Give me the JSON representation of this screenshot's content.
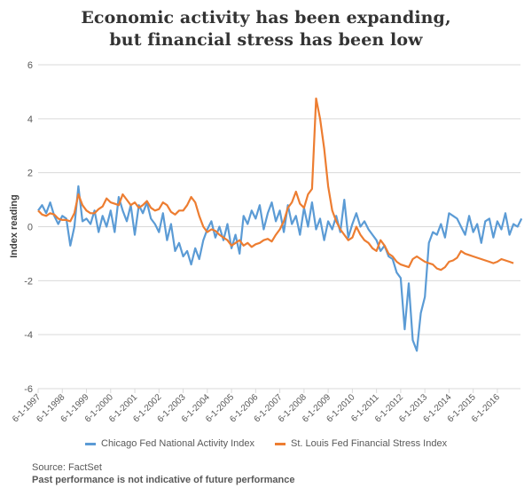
{
  "title_line1": "Economic activity has been expanding,",
  "title_line2": "but financial stress has been low",
  "colors": {
    "cfnai": "#5B9BD5",
    "stlfsi": "#ED7D31",
    "grid": "#D9D9D9",
    "axis_text": "#595959"
  },
  "legend": [
    {
      "label": "Chicago Fed National Activity Index"
    },
    {
      "label": "St. Louis Fed Financial Stress Index"
    }
  ],
  "footer": {
    "source": "Source: FactSet",
    "disclaimer": "Past performance is not indicative of future performance"
  },
  "chart_data": {
    "type": "line",
    "title": "Economic activity has been expanding, but financial stress has been low",
    "xlabel": "",
    "ylabel": "Index reading",
    "ylim": [
      -6,
      6
    ],
    "yticks": [
      6,
      4,
      2,
      0,
      -2,
      -4,
      -6
    ],
    "xtick_labels": [
      "6-1-1997",
      "6-1-1998",
      "6-1-1999",
      "6-1-2000",
      "6-1-2001",
      "6-1-2002",
      "6-1-2003",
      "6-1-2004",
      "6-1-2005",
      "6-1-2006",
      "6-1-2007",
      "6-1-2008",
      "6-1-2009",
      "6-1-2010",
      "6-1-2011",
      "6-1-2012",
      "6-1-2013",
      "6-1-2014",
      "6-1-2015",
      "6-1-2016"
    ],
    "x_start": "1997-06",
    "x_step_months": 2,
    "grid": true,
    "legend_position": "bottom",
    "series": [
      {
        "name": "Chicago Fed National Activity Index",
        "values": [
          0.6,
          0.8,
          0.5,
          0.9,
          0.4,
          0.1,
          0.4,
          0.3,
          -0.7,
          0.0,
          1.5,
          0.2,
          0.3,
          0.1,
          0.6,
          -0.2,
          0.4,
          0.0,
          0.6,
          -0.2,
          1.1,
          0.6,
          0.2,
          0.8,
          -0.3,
          0.8,
          0.5,
          0.9,
          0.3,
          0.1,
          -0.2,
          0.5,
          -0.5,
          0.1,
          -0.9,
          -0.6,
          -1.1,
          -0.9,
          -1.4,
          -0.8,
          -1.2,
          -0.5,
          -0.1,
          0.2,
          -0.4,
          0.0,
          -0.5,
          0.1,
          -0.8,
          -0.3,
          -1.0,
          0.4,
          0.1,
          0.6,
          0.3,
          0.8,
          -0.1,
          0.5,
          0.9,
          0.2,
          0.6,
          -0.2,
          0.8,
          0.1,
          0.4,
          -0.3,
          0.7,
          0.0,
          0.9,
          -0.1,
          0.3,
          -0.5,
          0.2,
          -0.1,
          0.4,
          -0.2,
          1.0,
          -0.4,
          0.1,
          0.5,
          0.0,
          0.2,
          -0.1,
          -0.3,
          -0.5,
          -0.9,
          -0.7,
          -1.1,
          -1.2,
          -1.7,
          -1.9,
          -3.8,
          -2.1,
          -4.2,
          -4.6,
          -3.2,
          -2.6,
          -0.6,
          -0.2,
          -0.3,
          0.1,
          -0.4,
          0.5,
          0.4,
          0.3,
          0.0,
          -0.3,
          0.4,
          -0.2,
          0.1,
          -0.6,
          0.2,
          0.3,
          -0.4,
          0.2,
          -0.1,
          0.5,
          -0.3,
          0.1,
          0.0,
          0.3
        ],
        "note": "bimonthly approximation read from chart"
      },
      {
        "name": "St. Louis Fed Financial Stress Index",
        "values": [
          0.6,
          0.45,
          0.4,
          0.5,
          0.45,
          0.3,
          0.25,
          0.25,
          0.2,
          0.5,
          1.2,
          0.8,
          0.6,
          0.5,
          0.5,
          0.65,
          0.75,
          1.05,
          0.9,
          0.85,
          0.8,
          1.2,
          1.0,
          0.8,
          0.9,
          0.7,
          0.8,
          0.95,
          0.7,
          0.6,
          0.65,
          0.9,
          0.8,
          0.55,
          0.45,
          0.6,
          0.6,
          0.8,
          1.1,
          0.9,
          0.4,
          0.0,
          -0.2,
          -0.1,
          -0.15,
          -0.3,
          -0.4,
          -0.5,
          -0.7,
          -0.6,
          -0.5,
          -0.7,
          -0.6,
          -0.75,
          -0.65,
          -0.6,
          -0.5,
          -0.45,
          -0.55,
          -0.3,
          -0.1,
          0.2,
          0.7,
          0.9,
          1.3,
          0.85,
          0.7,
          1.2,
          1.4,
          4.75,
          4.0,
          2.9,
          1.5,
          0.6,
          0.2,
          -0.1,
          -0.3,
          -0.5,
          -0.4,
          0.0,
          -0.3,
          -0.5,
          -0.6,
          -0.8,
          -0.9,
          -0.5,
          -0.7,
          -1.0,
          -1.1,
          -1.3,
          -1.4,
          -1.45,
          -1.5,
          -1.2,
          -1.1,
          -1.2,
          -1.3,
          -1.35,
          -1.4,
          -1.55,
          -1.6,
          -1.5,
          -1.3,
          -1.25,
          -1.15,
          -0.9,
          -1.0,
          -1.05,
          -1.1,
          -1.15,
          -1.2,
          -1.25,
          -1.3,
          -1.35,
          -1.3,
          -1.2,
          -1.25,
          -1.3,
          -1.35
        ],
        "note": "bimonthly approximation read from chart"
      }
    ]
  }
}
